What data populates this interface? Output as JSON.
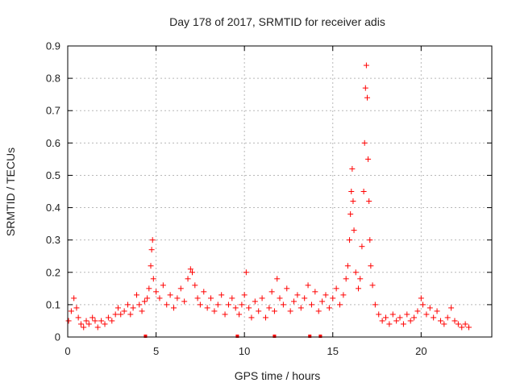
{
  "chart_data": {
    "type": "scatter",
    "title": "Day 178 of 2017, SRMTID for receiver adis",
    "xlabel": "GPS time / hours",
    "ylabel": "SRMTID / TECUs",
    "xlim": [
      0,
      24
    ],
    "ylim": [
      0,
      0.9
    ],
    "xticks": [
      0,
      5,
      10,
      15,
      20
    ],
    "xtick_labels": [
      "0",
      "5",
      "10",
      "15",
      "20"
    ],
    "yticks": [
      0,
      0.1,
      0.2,
      0.3,
      0.4,
      0.5,
      0.6,
      0.7,
      0.8,
      0.9
    ],
    "ytick_labels": [
      "0",
      "0.1",
      "0.2",
      "0.3",
      "0.4",
      "0.5",
      "0.6",
      "0.7",
      "0.8",
      "0.9"
    ],
    "grid": true,
    "marker": "+",
    "color": "#ff0000",
    "zero_marker_times": [
      4.4,
      9.6,
      11.7,
      13.7,
      14.3
    ],
    "series": [
      {
        "name": "SRMTID",
        "points": [
          [
            0.05,
            0.05
          ],
          [
            0.2,
            0.08
          ],
          [
            0.35,
            0.12
          ],
          [
            0.5,
            0.09
          ],
          [
            0.6,
            0.06
          ],
          [
            0.75,
            0.04
          ],
          [
            0.9,
            0.03
          ],
          [
            1.05,
            0.05
          ],
          [
            1.2,
            0.04
          ],
          [
            1.4,
            0.06
          ],
          [
            1.55,
            0.05
          ],
          [
            1.7,
            0.03
          ],
          [
            1.9,
            0.05
          ],
          [
            2.1,
            0.04
          ],
          [
            2.3,
            0.06
          ],
          [
            2.5,
            0.05
          ],
          [
            2.7,
            0.07
          ],
          [
            2.85,
            0.09
          ],
          [
            3.0,
            0.07
          ],
          [
            3.2,
            0.08
          ],
          [
            3.4,
            0.1
          ],
          [
            3.55,
            0.07
          ],
          [
            3.7,
            0.09
          ],
          [
            3.9,
            0.13
          ],
          [
            4.05,
            0.1
          ],
          [
            4.2,
            0.08
          ],
          [
            4.35,
            0.11
          ],
          [
            4.5,
            0.12
          ],
          [
            4.6,
            0.15
          ],
          [
            4.7,
            0.22
          ],
          [
            4.75,
            0.27
          ],
          [
            4.8,
            0.3
          ],
          [
            4.85,
            0.18
          ],
          [
            5.0,
            0.14
          ],
          [
            5.2,
            0.12
          ],
          [
            5.4,
            0.16
          ],
          [
            5.6,
            0.1
          ],
          [
            5.8,
            0.13
          ],
          [
            6.0,
            0.09
          ],
          [
            6.2,
            0.12
          ],
          [
            6.4,
            0.15
          ],
          [
            6.6,
            0.11
          ],
          [
            6.8,
            0.18
          ],
          [
            6.95,
            0.21
          ],
          [
            7.05,
            0.2
          ],
          [
            7.2,
            0.16
          ],
          [
            7.35,
            0.12
          ],
          [
            7.5,
            0.1
          ],
          [
            7.7,
            0.14
          ],
          [
            7.9,
            0.09
          ],
          [
            8.1,
            0.12
          ],
          [
            8.3,
            0.08
          ],
          [
            8.5,
            0.1
          ],
          [
            8.7,
            0.13
          ],
          [
            8.9,
            0.07
          ],
          [
            9.1,
            0.1
          ],
          [
            9.3,
            0.12
          ],
          [
            9.5,
            0.09
          ],
          [
            9.7,
            0.07
          ],
          [
            9.85,
            0.1
          ],
          [
            10.0,
            0.13
          ],
          [
            10.1,
            0.2
          ],
          [
            10.25,
            0.09
          ],
          [
            10.4,
            0.06
          ],
          [
            10.6,
            0.11
          ],
          [
            10.8,
            0.08
          ],
          [
            11.0,
            0.12
          ],
          [
            11.2,
            0.06
          ],
          [
            11.4,
            0.09
          ],
          [
            11.55,
            0.14
          ],
          [
            11.7,
            0.08
          ],
          [
            11.85,
            0.18
          ],
          [
            12.0,
            0.12
          ],
          [
            12.2,
            0.1
          ],
          [
            12.4,
            0.15
          ],
          [
            12.6,
            0.08
          ],
          [
            12.8,
            0.11
          ],
          [
            13.0,
            0.13
          ],
          [
            13.2,
            0.09
          ],
          [
            13.4,
            0.12
          ],
          [
            13.6,
            0.16
          ],
          [
            13.8,
            0.1
          ],
          [
            14.0,
            0.14
          ],
          [
            14.2,
            0.08
          ],
          [
            14.4,
            0.11
          ],
          [
            14.6,
            0.13
          ],
          [
            14.8,
            0.09
          ],
          [
            15.0,
            0.12
          ],
          [
            15.2,
            0.15
          ],
          [
            15.4,
            0.1
          ],
          [
            15.6,
            0.13
          ],
          [
            15.75,
            0.18
          ],
          [
            15.85,
            0.22
          ],
          [
            15.95,
            0.3
          ],
          [
            16.0,
            0.38
          ],
          [
            16.05,
            0.45
          ],
          [
            16.1,
            0.52
          ],
          [
            16.15,
            0.42
          ],
          [
            16.2,
            0.33
          ],
          [
            16.3,
            0.2
          ],
          [
            16.45,
            0.15
          ],
          [
            16.55,
            0.18
          ],
          [
            16.65,
            0.28
          ],
          [
            16.75,
            0.45
          ],
          [
            16.8,
            0.6
          ],
          [
            16.85,
            0.77
          ],
          [
            16.9,
            0.84
          ],
          [
            16.95,
            0.74
          ],
          [
            17.0,
            0.55
          ],
          [
            17.05,
            0.42
          ],
          [
            17.1,
            0.3
          ],
          [
            17.15,
            0.22
          ],
          [
            17.25,
            0.16
          ],
          [
            17.4,
            0.1
          ],
          [
            17.6,
            0.07
          ],
          [
            17.8,
            0.05
          ],
          [
            18.0,
            0.06
          ],
          [
            18.2,
            0.04
          ],
          [
            18.4,
            0.07
          ],
          [
            18.6,
            0.05
          ],
          [
            18.8,
            0.06
          ],
          [
            19.0,
            0.04
          ],
          [
            19.2,
            0.07
          ],
          [
            19.4,
            0.05
          ],
          [
            19.6,
            0.06
          ],
          [
            19.8,
            0.08
          ],
          [
            20.0,
            0.12
          ],
          [
            20.1,
            0.1
          ],
          [
            20.3,
            0.07
          ],
          [
            20.5,
            0.09
          ],
          [
            20.7,
            0.06
          ],
          [
            20.9,
            0.08
          ],
          [
            21.1,
            0.05
          ],
          [
            21.3,
            0.04
          ],
          [
            21.5,
            0.06
          ],
          [
            21.7,
            0.09
          ],
          [
            21.9,
            0.05
          ],
          [
            22.1,
            0.04
          ],
          [
            22.3,
            0.03
          ],
          [
            22.5,
            0.04
          ],
          [
            22.7,
            0.03
          ]
        ]
      }
    ]
  }
}
